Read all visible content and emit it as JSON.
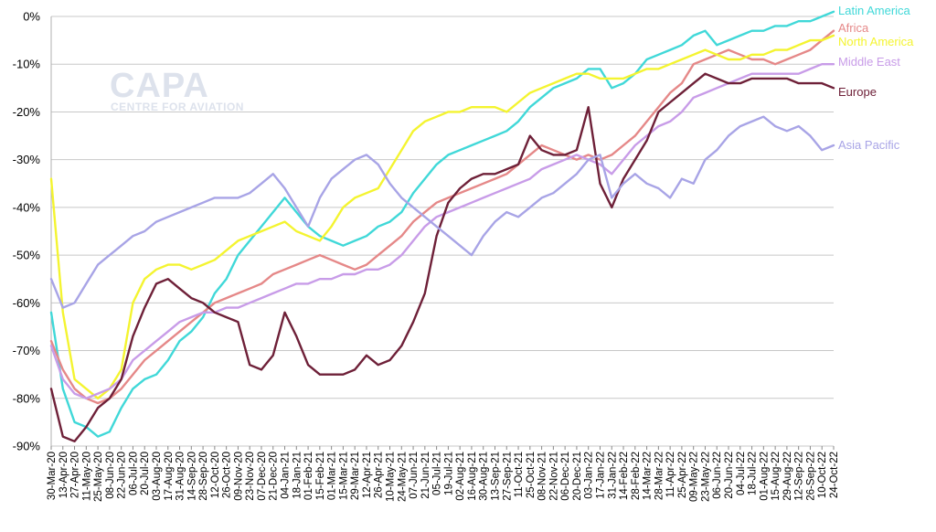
{
  "watermark": {
    "brand": "CAPA",
    "tagline": "CENTRE FOR AVIATION"
  },
  "chart_data": {
    "type": "line",
    "title": "",
    "xlabel": "",
    "ylabel": "",
    "ylim": [
      -90,
      0
    ],
    "y_ticks": [
      "0%",
      "-10%",
      "-20%",
      "-30%",
      "-40%",
      "-50%",
      "-60%",
      "-70%",
      "-80%",
      "-90%"
    ],
    "y_tick_values": [
      0,
      -10,
      -20,
      -30,
      -40,
      -50,
      -60,
      -70,
      -80,
      -90
    ],
    "grid": true,
    "legend": "line-end labels at right",
    "x_ticks": [
      "30-Mar-20",
      "13-Apr-20",
      "27-Apr-20",
      "11-May-20",
      "25-May-20",
      "08-Jun-20",
      "22-Jun-20",
      "06-Jul-20",
      "20-Jul-20",
      "03-Aug-20",
      "17-Aug-20",
      "31-Aug-20",
      "14-Sep-20",
      "28-Sep-20",
      "12-Oct-20",
      "26-Oct-20",
      "09-Nov-20",
      "23-Nov-20",
      "07-Dec-20",
      "21-Dec-20",
      "04-Jan-21",
      "18-Jan-21",
      "01-Feb-21",
      "15-Feb-21",
      "01-Mar-21",
      "15-Mar-21",
      "29-Mar-21",
      "12-Apr-21",
      "26-Apr-21",
      "10-May-21",
      "24-May-21",
      "07-Jun-21",
      "21-Jun-21",
      "05-Jul-21",
      "19-Jul-21",
      "02-Aug-21",
      "16-Aug-21",
      "30-Aug-21",
      "13-Sep-21",
      "27-Sep-21",
      "11-Oct-21",
      "25-Oct-21",
      "08-Nov-21",
      "22-Nov-21",
      "06-Dec-21",
      "20-Dec-21",
      "03-Jan-22",
      "17-Jan-22",
      "31-Jan-22",
      "14-Feb-22",
      "28-Feb-22",
      "14-Mar-22",
      "28-Mar-22",
      "11-Apr-22",
      "25-Apr-22",
      "09-May-22",
      "23-May-22",
      "06-Jun-22",
      "20-Jun-22",
      "04-Jul-22",
      "18-Jul-22",
      "01-Aug-22",
      "15-Aug-22",
      "29-Aug-22",
      "12-Sep-22",
      "26-Sep-22",
      "10-Oct-22",
      "24-Oct-22"
    ],
    "series": [
      {
        "name": "Latin America",
        "color": "#40d8d8",
        "values": [
          -62,
          -78,
          -85,
          -86,
          -88,
          -87,
          -82,
          -78,
          -76,
          -75,
          -72,
          -68,
          -66,
          -63,
          -58,
          -55,
          -50,
          -47,
          -44,
          -41,
          -38,
          -41,
          -44,
          -46,
          -47,
          -48,
          -47,
          -46,
          -44,
          -43,
          -41,
          -37,
          -34,
          -31,
          -29,
          -28,
          -27,
          -26,
          -25,
          -24,
          -22,
          -19,
          -17,
          -15,
          -14,
          -13,
          -11,
          -11,
          -15,
          -14,
          -12,
          -9,
          -8,
          -7,
          -6,
          -4,
          -3,
          -6,
          -5,
          -4,
          -3,
          -3,
          -2,
          -2,
          -1,
          -1,
          0,
          1
        ]
      },
      {
        "name": "Africa",
        "color": "#e58888",
        "values": [
          -68,
          -74,
          -78,
          -80,
          -81,
          -80,
          -78,
          -75,
          -72,
          -70,
          -68,
          -66,
          -64,
          -62,
          -60,
          -59,
          -58,
          -57,
          -56,
          -54,
          -53,
          -52,
          -51,
          -50,
          -51,
          -52,
          -53,
          -52,
          -50,
          -48,
          -46,
          -43,
          -41,
          -39,
          -38,
          -37,
          -36,
          -35,
          -34,
          -33,
          -31,
          -29,
          -27,
          -28,
          -29,
          -30,
          -29,
          -30,
          -29,
          -27,
          -25,
          -22,
          -19,
          -16,
          -14,
          -10,
          -9,
          -8,
          -7,
          -8,
          -9,
          -9,
          -10,
          -9,
          -8,
          -7,
          -5,
          -3
        ]
      },
      {
        "name": "North America",
        "color": "#f4f430",
        "values": [
          -34,
          -62,
          -76,
          -78,
          -80,
          -78,
          -74,
          -60,
          -55,
          -53,
          -52,
          -52,
          -53,
          -52,
          -51,
          -49,
          -47,
          -46,
          -45,
          -44,
          -43,
          -45,
          -46,
          -47,
          -44,
          -40,
          -38,
          -37,
          -36,
          -32,
          -28,
          -24,
          -22,
          -21,
          -20,
          -20,
          -19,
          -19,
          -19,
          -20,
          -18,
          -16,
          -15,
          -14,
          -13,
          -12,
          -12,
          -13,
          -13,
          -13,
          -12,
          -11,
          -11,
          -10,
          -9,
          -8,
          -7,
          -8,
          -9,
          -9,
          -8,
          -8,
          -7,
          -7,
          -6,
          -5,
          -5,
          -4
        ]
      },
      {
        "name": "Middle East",
        "color": "#c89ce8",
        "values": [
          -69,
          -76,
          -79,
          -80,
          -79,
          -78,
          -76,
          -72,
          -70,
          -68,
          -66,
          -64,
          -63,
          -62,
          -62,
          -61,
          -61,
          -60,
          -59,
          -58,
          -57,
          -56,
          -56,
          -55,
          -55,
          -54,
          -54,
          -53,
          -53,
          -52,
          -50,
          -47,
          -44,
          -42,
          -41,
          -40,
          -39,
          -38,
          -37,
          -36,
          -35,
          -34,
          -32,
          -31,
          -30,
          -29,
          -30,
          -31,
          -33,
          -30,
          -27,
          -25,
          -23,
          -22,
          -20,
          -17,
          -16,
          -15,
          -14,
          -13,
          -12,
          -12,
          -12,
          -12,
          -12,
          -11,
          -10,
          -10
        ]
      },
      {
        "name": "Europe",
        "color": "#6e2038",
        "values": [
          -78,
          -88,
          -89,
          -86,
          -82,
          -80,
          -76,
          -67,
          -61,
          -56,
          -55,
          -57,
          -59,
          -60,
          -62,
          -63,
          -64,
          -73,
          -74,
          -71,
          -62,
          -67,
          -73,
          -75,
          -75,
          -75,
          -74,
          -71,
          -73,
          -72,
          -69,
          -64,
          -58,
          -46,
          -39,
          -36,
          -34,
          -33,
          -33,
          -32,
          -31,
          -25,
          -28,
          -29,
          -29,
          -28,
          -19,
          -35,
          -40,
          -34,
          -30,
          -26,
          -20,
          -18,
          -16,
          -14,
          -12,
          -13,
          -14,
          -14,
          -13,
          -13,
          -13,
          -13,
          -14,
          -14,
          -14,
          -15
        ]
      },
      {
        "name": "Asia Pacific",
        "color": "#a8a4e6",
        "values": [
          -55,
          -61,
          -60,
          -56,
          -52,
          -50,
          -48,
          -46,
          -45,
          -43,
          -42,
          -41,
          -40,
          -39,
          -38,
          -38,
          -38,
          -37,
          -35,
          -33,
          -36,
          -40,
          -44,
          -38,
          -34,
          -32,
          -30,
          -29,
          -31,
          -35,
          -38,
          -40,
          -42,
          -44,
          -46,
          -48,
          -50,
          -46,
          -43,
          -41,
          -42,
          -40,
          -38,
          -37,
          -35,
          -33,
          -30,
          -29,
          -38,
          -35,
          -33,
          -35,
          -36,
          -38,
          -34,
          -35,
          -30,
          -28,
          -25,
          -23,
          -22,
          -21,
          -23,
          -24,
          -23,
          -25,
          -28,
          -27
        ]
      }
    ]
  }
}
